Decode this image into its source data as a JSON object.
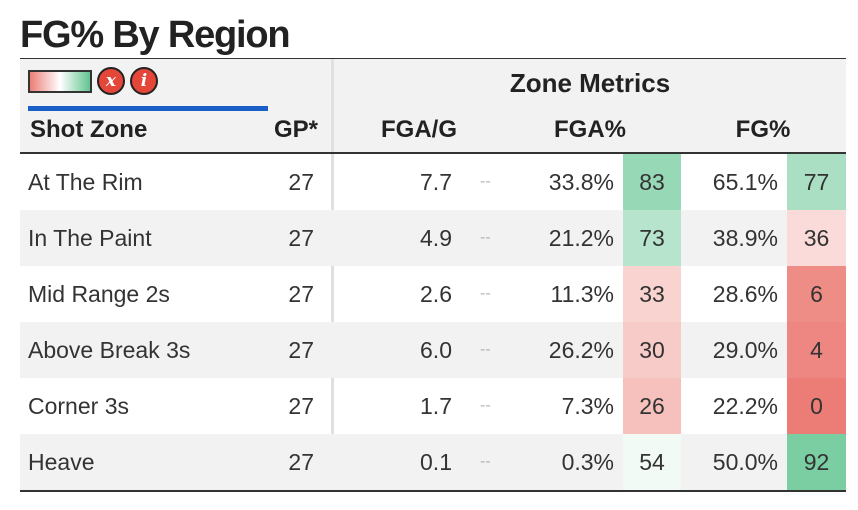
{
  "title": "FG% By Region",
  "controls": {
    "clear_label": "x",
    "info_label": "i"
  },
  "header": {
    "group_label": "Zone Metrics",
    "columns": {
      "zone": "Shot Zone",
      "gp": "GP*",
      "fga_g": "FGA/G",
      "fga_pct": "FGA%",
      "fg_pct": "FG%"
    }
  },
  "rows": [
    {
      "zone": "At The Rim",
      "gp": "27",
      "fga_g": "7.7",
      "dash": "--",
      "fga_pct": "33.8%",
      "fga_pct_rank": 83,
      "fg_pct": "65.1%",
      "fg_pct_rank": 77
    },
    {
      "zone": "In The Paint",
      "gp": "27",
      "fga_g": "4.9",
      "dash": "--",
      "fga_pct": "21.2%",
      "fga_pct_rank": 73,
      "fg_pct": "38.9%",
      "fg_pct_rank": 36
    },
    {
      "zone": "Mid Range 2s",
      "gp": "27",
      "fga_g": "2.6",
      "dash": "--",
      "fga_pct": "11.3%",
      "fga_pct_rank": 33,
      "fg_pct": "28.6%",
      "fg_pct_rank": 6
    },
    {
      "zone": "Above Break 3s",
      "gp": "27",
      "fga_g": "6.0",
      "dash": "--",
      "fga_pct": "26.2%",
      "fga_pct_rank": 30,
      "fg_pct": "29.0%",
      "fg_pct_rank": 4
    },
    {
      "zone": "Corner 3s",
      "gp": "27",
      "fga_g": "1.7",
      "dash": "--",
      "fga_pct": "7.3%",
      "fga_pct_rank": 26,
      "fg_pct": "22.2%",
      "fg_pct_rank": 0
    },
    {
      "zone": "Heave",
      "gp": "27",
      "fga_g": "0.1",
      "dash": "--",
      "fga_pct": "0.3%",
      "fga_pct_rank": 54,
      "fg_pct": "50.0%",
      "fg_pct_rank": 92
    }
  ],
  "colors": {
    "low": "#ec7d76",
    "mid": "#ffffff",
    "high": "#62c490",
    "accent": "#1a5fc7",
    "button": "#e4473a"
  }
}
